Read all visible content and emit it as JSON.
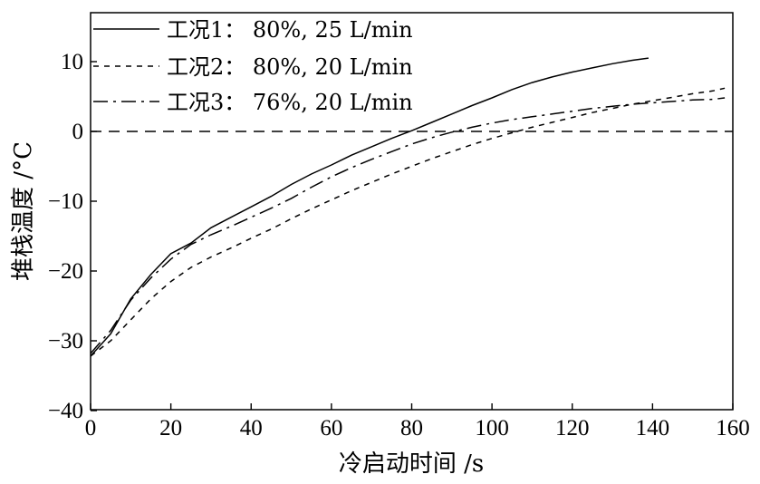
{
  "chart_data": {
    "type": "line",
    "xlabel": "冷启动时间 /s",
    "ylabel": "堆栈温度 /°C",
    "xlim": [
      0,
      160
    ],
    "ylim": [
      -40,
      17
    ],
    "xticks": [
      0,
      20,
      40,
      60,
      80,
      100,
      120,
      140,
      160
    ],
    "yticks": [
      -40,
      -30,
      -20,
      -10,
      0,
      10
    ],
    "grid": false,
    "legend_position": "top-left",
    "reference_line": {
      "y": 0,
      "style": "dashed"
    },
    "series": [
      {
        "name": "工况1： 80%, 25 L/min",
        "style": "solid",
        "x": [
          0,
          5,
          10,
          15,
          20,
          25,
          30,
          35,
          40,
          45,
          50,
          55,
          60,
          65,
          70,
          75,
          80,
          85,
          90,
          95,
          100,
          105,
          110,
          115,
          120,
          125,
          130,
          135,
          139
        ],
        "y": [
          -32.2,
          -29,
          -24,
          -20.5,
          -17.5,
          -16,
          -13.8,
          -12.3,
          -10.8,
          -9.3,
          -7.6,
          -6.1,
          -4.8,
          -3.4,
          -2.2,
          -1.0,
          0.1,
          1.3,
          2.5,
          3.7,
          4.8,
          6.0,
          7.0,
          7.8,
          8.5,
          9.1,
          9.7,
          10.2,
          10.5
        ]
      },
      {
        "name": "工况2： 80%, 20 L/min",
        "style": "dashed",
        "x": [
          0,
          5,
          10,
          15,
          20,
          25,
          30,
          35,
          40,
          45,
          50,
          55,
          60,
          65,
          70,
          75,
          80,
          85,
          90,
          95,
          100,
          105,
          110,
          115,
          120,
          125,
          130,
          135,
          140,
          145,
          150,
          155,
          158
        ],
        "y": [
          -32.2,
          -30,
          -27,
          -24,
          -21.5,
          -19.5,
          -18,
          -16.7,
          -15.3,
          -14,
          -12.5,
          -11.1,
          -9.8,
          -8.5,
          -7.3,
          -6.1,
          -5.0,
          -3.9,
          -2.9,
          -1.9,
          -1.0,
          -0.2,
          0.6,
          1.3,
          2.0,
          2.7,
          3.3,
          3.9,
          4.4,
          4.9,
          5.4,
          5.8,
          6.2
        ]
      },
      {
        "name": "工况3： 76%, 20 L/min",
        "style": "dashdot",
        "x": [
          0,
          5,
          10,
          15,
          20,
          25,
          30,
          35,
          40,
          45,
          50,
          55,
          60,
          65,
          70,
          75,
          80,
          85,
          90,
          95,
          100,
          105,
          110,
          115,
          120,
          125,
          130,
          135,
          140,
          145,
          150,
          155,
          158
        ],
        "y": [
          -31.8,
          -28.5,
          -24.2,
          -21,
          -18.3,
          -16.2,
          -14.8,
          -13.6,
          -12.3,
          -11.0,
          -9.6,
          -8.0,
          -6.5,
          -5.2,
          -4.0,
          -2.9,
          -1.8,
          -0.9,
          -0.1,
          0.6,
          1.2,
          1.7,
          2.1,
          2.5,
          2.9,
          3.3,
          3.6,
          3.9,
          4.1,
          4.3,
          4.5,
          4.6,
          4.8
        ]
      }
    ]
  }
}
